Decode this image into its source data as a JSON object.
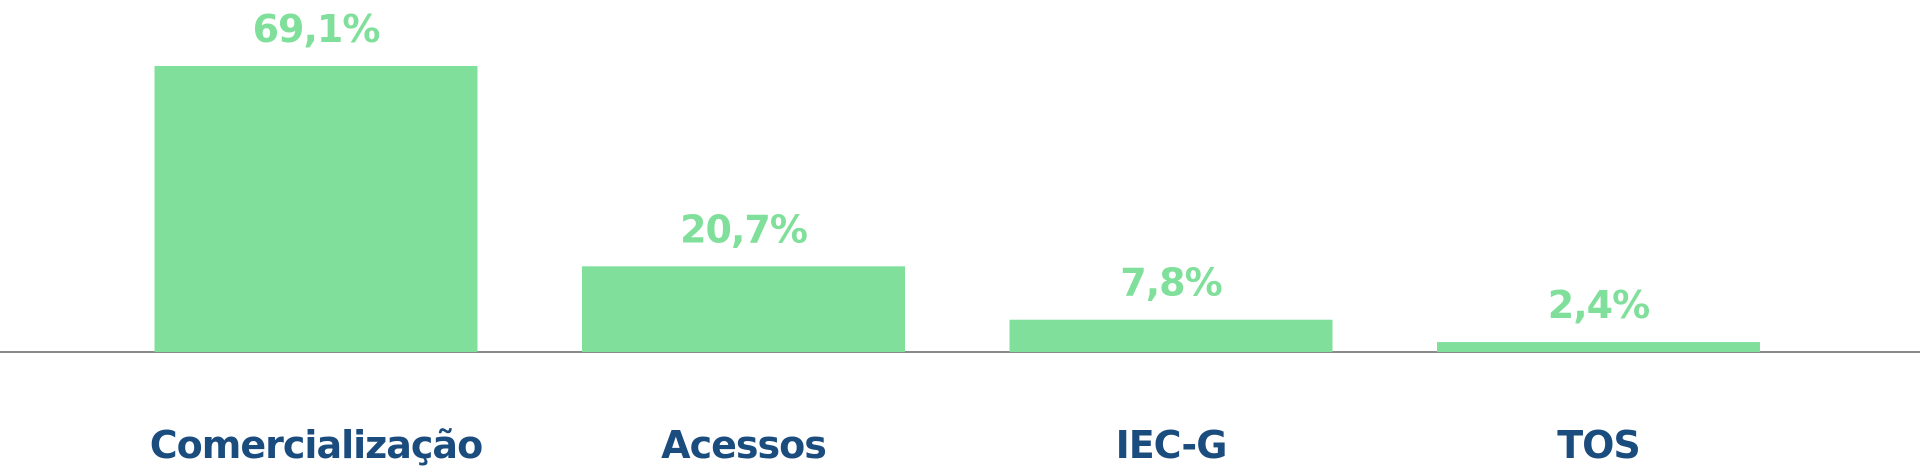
{
  "chart_data": {
    "type": "bar",
    "categories": [
      "Comercialização",
      "Acessos",
      "IEC-G",
      "TOS"
    ],
    "values": [
      69.1,
      20.7,
      7.8,
      2.4
    ],
    "value_labels": [
      "69,1%",
      "20,7%",
      "7,8%",
      "2,4%"
    ],
    "title": "",
    "xlabel": "",
    "ylabel": "",
    "ylim": [
      0,
      69.1
    ],
    "grid": false,
    "legend": "none"
  },
  "colors": {
    "bar": "#80df9b",
    "value_label": "#80df9b",
    "category_label": "#1b4c7e",
    "baseline": "#8a8a8a"
  }
}
